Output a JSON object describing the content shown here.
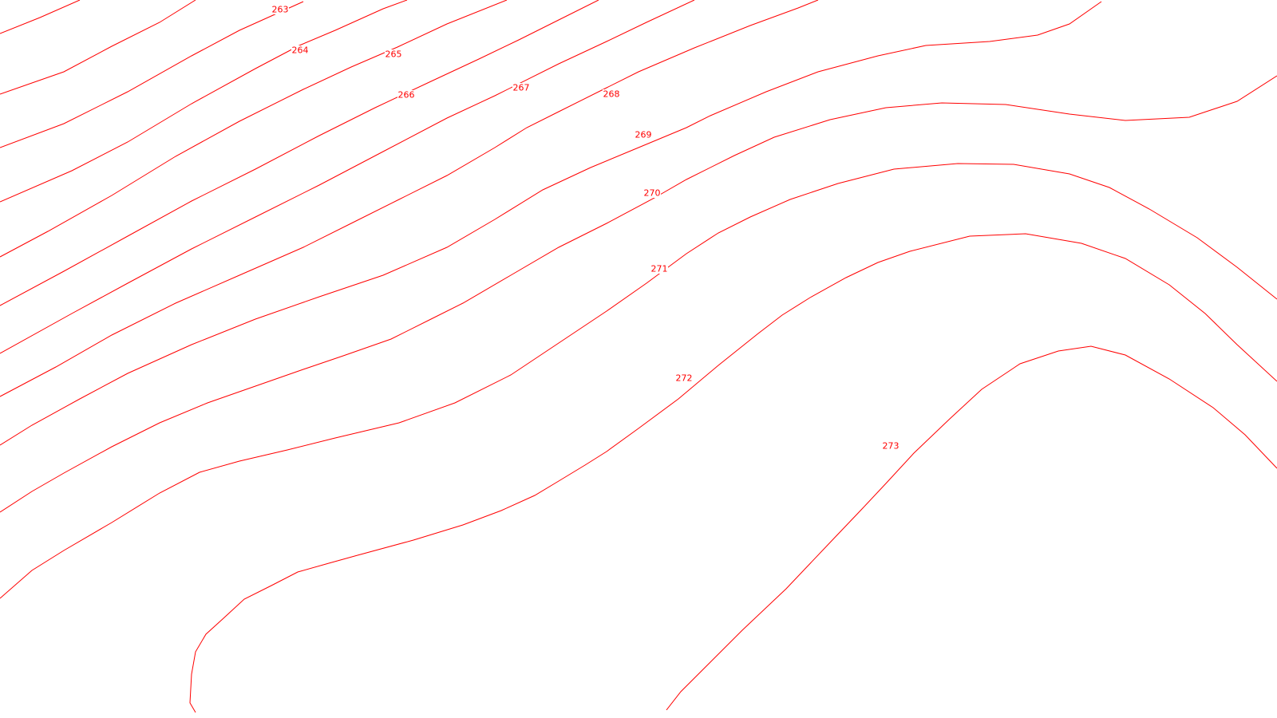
{
  "map": {
    "line_color": "#ff0000",
    "background": "#ffffff",
    "contour_interval": 1,
    "contours": [
      {
        "level": "263",
        "id": "263"
      },
      {
        "level": "264",
        "id": "264"
      },
      {
        "level": "265",
        "id": "265"
      },
      {
        "level": "266",
        "id": "266"
      },
      {
        "level": "",
        "id": "266b"
      },
      {
        "level": "267",
        "id": "267"
      },
      {
        "level": "268",
        "id": "268"
      },
      {
        "level": "269",
        "id": "269"
      },
      {
        "level": "270",
        "id": "270"
      },
      {
        "level": "271",
        "id": "271"
      },
      {
        "level": "272",
        "id": "272"
      },
      {
        "level": "273",
        "id": "273"
      }
    ]
  }
}
